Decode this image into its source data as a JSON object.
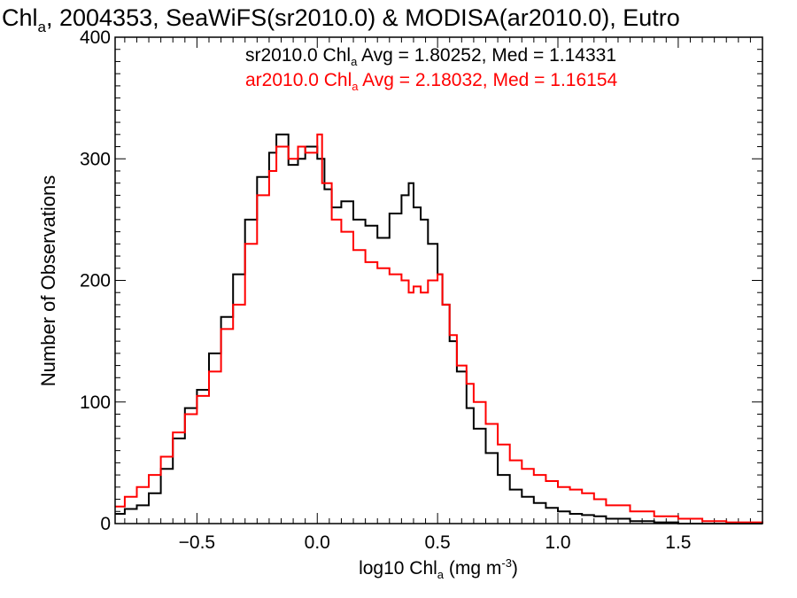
{
  "chart_data": {
    "type": "line",
    "title": {
      "prefix": "Chl",
      "sub": "a",
      "rest": ", 2004353, SeaWiFS(sr2010.0) & MODISA(ar2010.0), Eutro"
    },
    "xlabel": {
      "prefix": "log10 Chl",
      "sub": "a",
      "mid": " (mg m",
      "sup": "-3",
      "end": ")"
    },
    "ylabel": "Number of Observations",
    "xlim": [
      -0.84,
      1.85
    ],
    "ylim": [
      0,
      400
    ],
    "x_ticks": [
      -0.5,
      0.0,
      0.5,
      1.0,
      1.5
    ],
    "x_tick_labels": [
      "−0.5",
      "0.0",
      "0.5",
      "1.0",
      "1.5"
    ],
    "y_ticks": [
      0,
      100,
      200,
      300,
      400
    ],
    "y_tick_labels": [
      "0",
      "100",
      "200",
      "300",
      "400"
    ],
    "grid": false,
    "legend_position": "top",
    "stats": [
      {
        "prefix": "sr2010.0 Chl",
        "sub": "a",
        "rest": " Avg = 1.80252, Med = 1.14331",
        "color": "#000000"
      },
      {
        "prefix": "ar2010.0 Chl",
        "sub": "a",
        "rest": " Avg = 2.18032, Med = 1.16154",
        "color": "#ff0000"
      }
    ],
    "series": [
      {
        "color": "#000000",
        "x": [
          -0.84,
          -0.8,
          -0.75,
          -0.7,
          -0.65,
          -0.6,
          -0.55,
          -0.5,
          -0.45,
          -0.4,
          -0.35,
          -0.3,
          -0.25,
          -0.2,
          -0.17,
          -0.12,
          -0.08,
          -0.05,
          0.0,
          0.03,
          0.06,
          0.1,
          0.15,
          0.2,
          0.25,
          0.3,
          0.35,
          0.38,
          0.4,
          0.43,
          0.46,
          0.5,
          0.52,
          0.55,
          0.58,
          0.62,
          0.65,
          0.7,
          0.75,
          0.8,
          0.85,
          0.9,
          0.95,
          1.0,
          1.05,
          1.1,
          1.15,
          1.2,
          1.3,
          1.4,
          1.5,
          1.6,
          1.7,
          1.85
        ],
        "values": [
          8,
          12,
          15,
          25,
          45,
          70,
          95,
          110,
          140,
          170,
          205,
          250,
          285,
          305,
          320,
          295,
          300,
          310,
          300,
          275,
          260,
          265,
          250,
          245,
          235,
          255,
          270,
          280,
          260,
          250,
          230,
          205,
          180,
          150,
          125,
          95,
          78,
          58,
          40,
          28,
          22,
          17,
          13,
          10,
          8,
          7,
          6,
          4,
          2,
          1,
          0,
          0,
          0,
          0
        ]
      },
      {
        "color": "#ff0000",
        "x": [
          -0.84,
          -0.8,
          -0.75,
          -0.7,
          -0.65,
          -0.6,
          -0.55,
          -0.5,
          -0.45,
          -0.4,
          -0.35,
          -0.3,
          -0.25,
          -0.2,
          -0.17,
          -0.12,
          -0.08,
          -0.05,
          0.0,
          0.02,
          0.06,
          0.1,
          0.15,
          0.2,
          0.25,
          0.3,
          0.35,
          0.38,
          0.4,
          0.43,
          0.46,
          0.5,
          0.52,
          0.55,
          0.58,
          0.62,
          0.65,
          0.7,
          0.75,
          0.8,
          0.85,
          0.9,
          0.95,
          1.0,
          1.05,
          1.1,
          1.15,
          1.2,
          1.3,
          1.4,
          1.5,
          1.6,
          1.7,
          1.85
        ],
        "values": [
          14,
          22,
          30,
          40,
          55,
          75,
          90,
          105,
          125,
          160,
          180,
          230,
          270,
          290,
          310,
          300,
          310,
          305,
          320,
          280,
          250,
          240,
          225,
          215,
          210,
          205,
          200,
          190,
          195,
          190,
          200,
          205,
          180,
          155,
          130,
          115,
          100,
          82,
          65,
          52,
          45,
          40,
          35,
          30,
          28,
          25,
          20,
          15,
          10,
          6,
          4,
          2,
          1,
          0
        ]
      }
    ]
  }
}
